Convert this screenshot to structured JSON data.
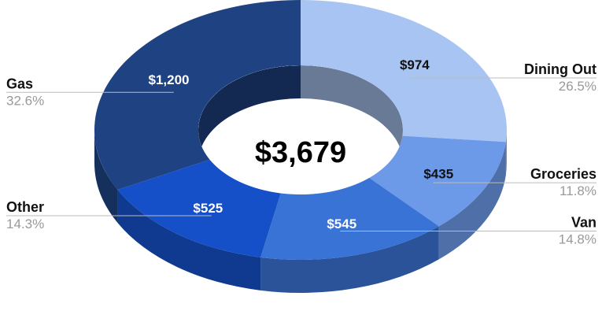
{
  "chart_data": {
    "type": "pie",
    "style": "3d-donut",
    "center_label": "$3,679",
    "slices": [
      {
        "name": "Dining Out",
        "value": 974,
        "value_label": "$974",
        "percent_label": "26.5%",
        "color": "#a7c4f2",
        "label_color": "#111111"
      },
      {
        "name": "Groceries",
        "value": 435,
        "value_label": "$435",
        "percent_label": "11.8%",
        "color": "#6c9ae8",
        "label_color": "#111111"
      },
      {
        "name": "Van",
        "value": 545,
        "value_label": "$545",
        "percent_label": "14.8%",
        "color": "#3a73d6",
        "label_color": "#ffffff"
      },
      {
        "name": "Other",
        "value": 525,
        "value_label": "$525",
        "percent_label": "14.3%",
        "color": "#1550c8",
        "label_color": "#ffffff"
      },
      {
        "name": "Gas",
        "value": 1200,
        "value_label": "$1,200",
        "percent_label": "32.6%",
        "color": "#1e4282",
        "label_color": "#ffffff"
      }
    ]
  }
}
